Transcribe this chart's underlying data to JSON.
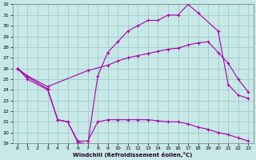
{
  "xlabel": "Windchill (Refroidissement éolien,°C)",
  "bg_color": "#c8e8e8",
  "grid_color": "#a0c8c8",
  "line_color": "#aa00aa",
  "xlim": [
    -0.5,
    23.5
  ],
  "ylim": [
    19,
    32
  ],
  "yticks": [
    19,
    20,
    21,
    22,
    23,
    24,
    25,
    26,
    27,
    28,
    29,
    30,
    31,
    32
  ],
  "xticks": [
    0,
    1,
    2,
    3,
    4,
    5,
    6,
    7,
    8,
    9,
    10,
    11,
    12,
    13,
    14,
    15,
    16,
    17,
    18,
    19,
    20,
    21,
    22,
    23
  ],
  "line1_x": [
    0,
    1,
    3,
    4,
    5,
    6,
    7,
    8,
    9,
    10,
    11,
    12,
    13,
    14,
    15,
    16,
    17,
    18,
    20,
    21,
    22,
    23
  ],
  "line1_y": [
    26.0,
    25.0,
    24.0,
    21.2,
    21.0,
    19.1,
    18.9,
    25.3,
    27.5,
    28.5,
    29.5,
    30.0,
    30.5,
    30.5,
    31.0,
    31.0,
    32.0,
    31.2,
    29.5,
    24.5,
    23.5,
    23.2
  ],
  "line2_x": [
    0,
    1,
    3,
    7,
    9,
    10,
    11,
    12,
    13,
    14,
    15,
    16,
    17,
    18,
    19,
    20,
    21,
    22,
    23
  ],
  "line2_y": [
    26.0,
    25.3,
    24.3,
    25.8,
    26.3,
    26.7,
    27.0,
    27.2,
    27.4,
    27.6,
    27.8,
    27.9,
    28.2,
    28.4,
    28.5,
    27.5,
    26.5,
    25.0,
    23.8
  ],
  "line3_x": [
    0,
    1,
    3,
    4,
    5,
    6,
    7,
    8,
    9,
    10,
    11,
    12,
    13,
    14,
    15,
    16,
    17,
    18,
    19,
    20,
    21,
    22,
    23
  ],
  "line3_y": [
    26.0,
    25.2,
    24.1,
    21.2,
    21.0,
    19.2,
    19.2,
    21.0,
    21.2,
    21.2,
    21.2,
    21.2,
    21.2,
    21.1,
    21.0,
    21.0,
    20.8,
    20.5,
    20.3,
    20.0,
    19.8,
    19.5,
    19.2
  ]
}
